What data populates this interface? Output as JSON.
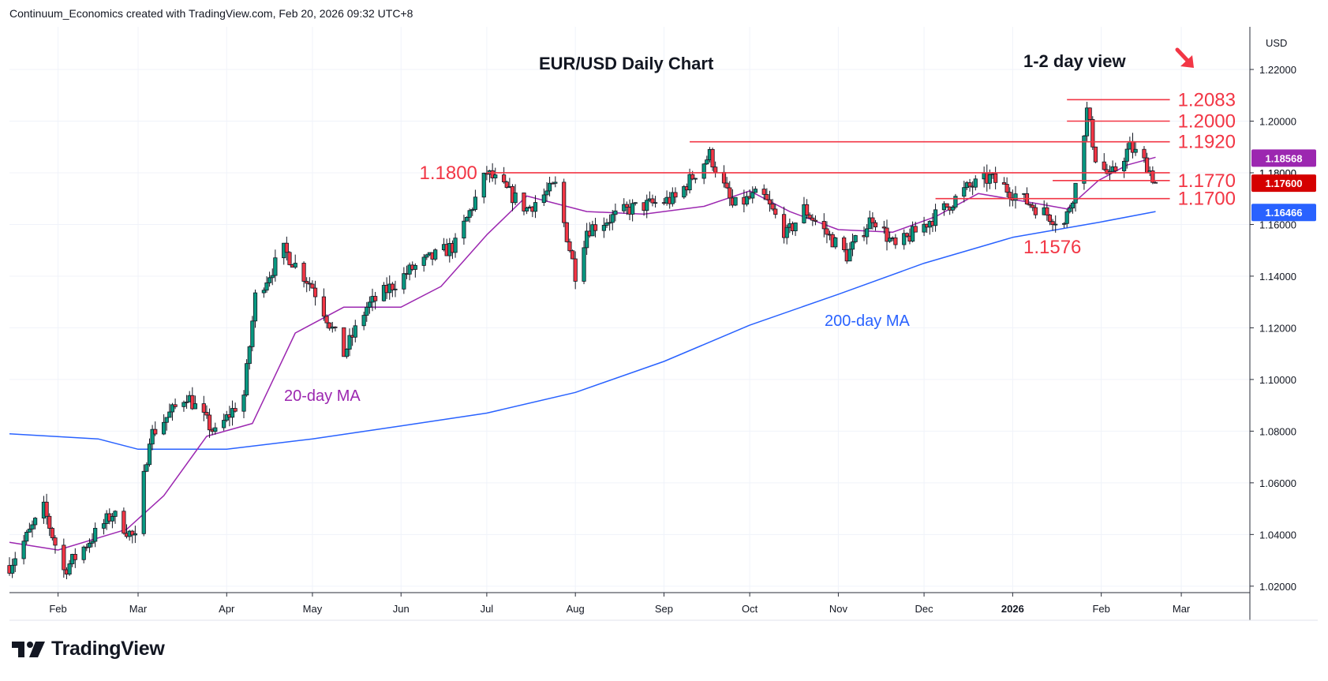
{
  "header": {
    "text": "Continuum_Economics created with TradingView.com, Feb 20, 2026 09:32 UTC+8"
  },
  "brand": {
    "name": "TradingView",
    "logo_icon": "tradingview-logo-icon"
  },
  "chart_data": {
    "type": "candlestick",
    "title": "EUR/USD Daily Chart",
    "subtitle": "1-2 day view",
    "currency_label": "USD",
    "ylim": [
      1.0175,
      1.2365
    ],
    "y_ticks": [
      "1.22000",
      "1.20000",
      "1.18000",
      "1.16000",
      "1.14000",
      "1.12000",
      "1.10000",
      "1.08000",
      "1.06000",
      "1.04000",
      "1.02000"
    ],
    "y_tick_values": [
      1.22,
      1.2,
      1.18,
      1.16,
      1.14,
      1.12,
      1.1,
      1.08,
      1.06,
      1.04,
      1.02
    ],
    "x_range": [
      "2025-01-15",
      "2026-03-25"
    ],
    "x_ticks": [
      {
        "label": "Feb",
        "date": "2025-02-01"
      },
      {
        "label": "Mar",
        "date": "2025-03-01"
      },
      {
        "label": "Apr",
        "date": "2025-04-01"
      },
      {
        "label": "May",
        "date": "2025-05-01"
      },
      {
        "label": "Jun",
        "date": "2025-06-01"
      },
      {
        "label": "Jul",
        "date": "2025-07-01"
      },
      {
        "label": "Aug",
        "date": "2025-08-01"
      },
      {
        "label": "Sep",
        "date": "2025-09-01"
      },
      {
        "label": "Oct",
        "date": "2025-10-01"
      },
      {
        "label": "Nov",
        "date": "2025-11-01"
      },
      {
        "label": "Dec",
        "date": "2025-12-01"
      },
      {
        "label": "2026",
        "date": "2026-01-01",
        "bold": true
      },
      {
        "label": "Feb",
        "date": "2026-02-01"
      },
      {
        "label": "Mar",
        "date": "2026-03-01"
      }
    ],
    "price_path": [
      [
        "2025-01-15",
        1.028
      ],
      [
        "2025-01-27",
        1.05
      ],
      [
        "2025-02-03",
        1.026
      ],
      [
        "2025-02-20",
        1.048
      ],
      [
        "2025-02-28",
        1.038
      ],
      [
        "2025-03-05",
        1.078
      ],
      [
        "2025-03-18",
        1.094
      ],
      [
        "2025-03-28",
        1.079
      ],
      [
        "2025-04-07",
        1.094
      ],
      [
        "2025-04-11",
        1.132
      ],
      [
        "2025-04-21",
        1.15
      ],
      [
        "2025-05-01",
        1.136
      ],
      [
        "2025-05-12",
        1.11
      ],
      [
        "2025-05-20",
        1.128
      ],
      [
        "2025-06-05",
        1.143
      ],
      [
        "2025-06-20",
        1.152
      ],
      [
        "2025-07-01",
        1.18
      ],
      [
        "2025-07-15",
        1.166
      ],
      [
        "2025-07-25",
        1.175
      ],
      [
        "2025-08-01",
        1.141
      ],
      [
        "2025-08-05",
        1.158
      ],
      [
        "2025-08-20",
        1.166
      ],
      [
        "2025-09-05",
        1.17
      ],
      [
        "2025-09-17",
        1.187
      ],
      [
        "2025-09-25",
        1.167
      ],
      [
        "2025-10-05",
        1.172
      ],
      [
        "2025-10-14",
        1.156
      ],
      [
        "2025-10-20",
        1.166
      ],
      [
        "2025-11-04",
        1.148
      ],
      [
        "2025-11-13",
        1.163
      ],
      [
        "2025-11-21",
        1.151
      ],
      [
        "2025-12-08",
        1.166
      ],
      [
        "2025-12-16",
        1.174
      ],
      [
        "2025-12-24",
        1.178
      ],
      [
        "2026-01-07",
        1.168
      ],
      [
        "2026-01-19",
        1.16
      ],
      [
        "2026-01-23",
        1.175
      ],
      [
        "2026-01-27",
        1.204
      ],
      [
        "2026-01-30",
        1.186
      ],
      [
        "2026-02-04",
        1.178
      ],
      [
        "2026-02-11",
        1.19
      ],
      [
        "2026-02-17",
        1.183
      ],
      [
        "2026-02-20",
        1.176
      ]
    ],
    "sma20_path": [
      [
        "2025-01-15",
        1.037
      ],
      [
        "2025-02-01",
        1.034
      ],
      [
        "2025-02-25",
        1.042
      ],
      [
        "2025-03-10",
        1.055
      ],
      [
        "2025-03-25",
        1.078
      ],
      [
        "2025-04-10",
        1.083
      ],
      [
        "2025-04-25",
        1.118
      ],
      [
        "2025-05-12",
        1.128
      ],
      [
        "2025-06-01",
        1.128
      ],
      [
        "2025-06-15",
        1.136
      ],
      [
        "2025-07-01",
        1.156
      ],
      [
        "2025-07-15",
        1.171
      ],
      [
        "2025-08-05",
        1.165
      ],
      [
        "2025-08-25",
        1.164
      ],
      [
        "2025-09-15",
        1.167
      ],
      [
        "2025-10-01",
        1.173
      ],
      [
        "2025-10-15",
        1.165
      ],
      [
        "2025-11-01",
        1.158
      ],
      [
        "2025-11-20",
        1.157
      ],
      [
        "2025-12-05",
        1.163
      ],
      [
        "2025-12-20",
        1.172
      ],
      [
        "2026-01-10",
        1.168
      ],
      [
        "2026-01-20",
        1.166
      ],
      [
        "2026-01-31",
        1.177
      ],
      [
        "2026-02-10",
        1.183
      ],
      [
        "2026-02-20",
        1.186
      ]
    ],
    "sma200_path": [
      [
        "2025-01-15",
        1.079
      ],
      [
        "2025-02-15",
        1.077
      ],
      [
        "2025-03-01",
        1.073
      ],
      [
        "2025-04-01",
        1.073
      ],
      [
        "2025-05-01",
        1.077
      ],
      [
        "2025-06-01",
        1.082
      ],
      [
        "2025-07-01",
        1.087
      ],
      [
        "2025-08-01",
        1.095
      ],
      [
        "2025-09-01",
        1.107
      ],
      [
        "2025-10-01",
        1.121
      ],
      [
        "2025-11-01",
        1.133
      ],
      [
        "2025-12-01",
        1.145
      ],
      [
        "2026-01-01",
        1.155
      ],
      [
        "2026-02-01",
        1.161
      ],
      [
        "2026-02-20",
        1.165
      ]
    ],
    "series": [
      {
        "name": "20-day MA",
        "color": "#9c27b0",
        "last_value": "1.18568"
      },
      {
        "name": "200-day MA",
        "color": "#2962ff",
        "last_value": "1.16466"
      }
    ],
    "last_price": "1.17600",
    "hidden_tick": "1.18000",
    "levels": [
      {
        "label": "1.2083",
        "value": 1.2083,
        "from": "2026-01-20",
        "to": "2026-02-25",
        "label_pos": "right"
      },
      {
        "label": "1.2000",
        "value": 1.2,
        "from": "2026-01-20",
        "to": "2026-02-25",
        "label_pos": "right"
      },
      {
        "label": "1.1920",
        "value": 1.192,
        "from": "2025-09-10",
        "to": "2026-02-25",
        "label_pos": "right"
      },
      {
        "label": "1.1800",
        "value": 1.18,
        "from": "2025-07-01",
        "to": "2026-02-25",
        "label_pos": "left"
      },
      {
        "label": "1.1770",
        "value": 1.177,
        "from": "2026-01-15",
        "to": "2026-02-25",
        "label_pos": "right"
      },
      {
        "label": "1.1700",
        "value": 1.17,
        "from": "2025-12-05",
        "to": "2026-02-25",
        "label_pos": "right"
      }
    ],
    "low_label": "1.1576",
    "direction_icon": "down-arrow-icon",
    "colors": {
      "up": "#089981",
      "down": "#f23645",
      "level": "#f23645",
      "sma20": "#9c27b0",
      "sma200": "#2962ff"
    }
  }
}
